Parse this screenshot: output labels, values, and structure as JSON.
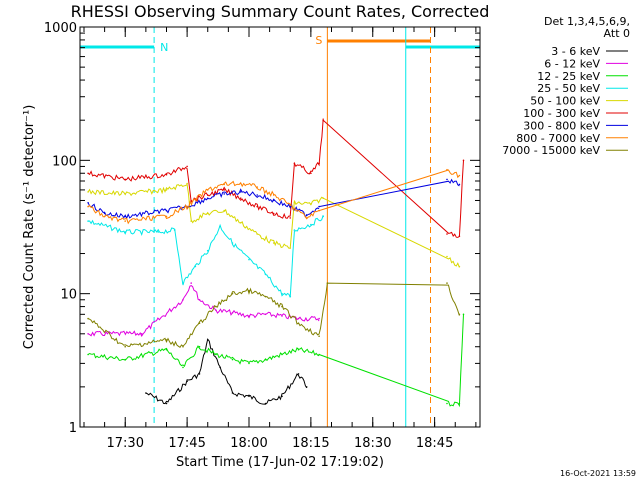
{
  "chart_data": {
    "type": "line",
    "title": "RHESSI Observing Summary Count Rates, Corrected",
    "xlabel": "Start Time (17-Jun-02 17:19:02)",
    "ylabel": "Corrected Count Rate (s⁻¹ detector⁻¹)",
    "yscale": "log",
    "ylim": [
      1,
      1000
    ],
    "xlim": [
      "17:19:02",
      "18:56:00"
    ],
    "x_ticks": [
      "17:30",
      "17:45",
      "18:00",
      "18:15",
      "18:30",
      "18:45"
    ],
    "y_ticks": [
      "1",
      "10",
      "100",
      "1000"
    ],
    "legend_position": "right",
    "legend_header": [
      "Det 1,3,4,5,6,9,",
      "Att 0"
    ],
    "series": [
      {
        "name": "3 - 6 keV",
        "color": "#000000",
        "points": [
          [
            "17:35",
            1.8
          ],
          [
            "17:40",
            1.5
          ],
          [
            "17:45",
            2.2
          ],
          [
            "17:48",
            2.5
          ],
          [
            "17:50",
            4.5
          ],
          [
            "17:53",
            2.8
          ],
          [
            "17:56",
            1.8
          ],
          [
            "18:00",
            1.7
          ],
          [
            "18:04",
            1.5
          ],
          [
            "18:08",
            1.7
          ],
          [
            "18:12",
            2.5
          ],
          [
            "18:14",
            2.0
          ]
        ]
      },
      {
        "name": "6 - 12 keV",
        "color": "#e000e0",
        "points": [
          [
            "17:21",
            5.0
          ],
          [
            "17:34",
            5.0
          ],
          [
            "17:44",
            9.0
          ],
          [
            "17:46",
            12.0
          ],
          [
            "17:48",
            9.0
          ],
          [
            "17:52",
            7.5
          ],
          [
            "17:56",
            7.2
          ],
          [
            "18:00",
            6.8
          ],
          [
            "18:04",
            7.0
          ],
          [
            "18:08",
            6.8
          ],
          [
            "18:12",
            6.5
          ],
          [
            "18:17",
            6.5
          ]
        ]
      },
      {
        "name": "12 - 25 keV",
        "color": "#00e000",
        "points": [
          [
            "17:21",
            3.5
          ],
          [
            "17:30",
            3.2
          ],
          [
            "17:40",
            3.8
          ],
          [
            "17:44",
            2.8
          ],
          [
            "17:48",
            4.0
          ],
          [
            "17:52",
            3.5
          ],
          [
            "17:56",
            3.2
          ],
          [
            "18:00",
            3.0
          ],
          [
            "18:04",
            3.2
          ],
          [
            "18:08",
            3.5
          ],
          [
            "18:12",
            3.8
          ],
          [
            "18:17",
            3.5
          ],
          [
            "18:48",
            1.5
          ],
          [
            "18:51",
            1.5
          ],
          [
            "18:52",
            7.0
          ]
        ]
      },
      {
        "name": "25 - 50 keV",
        "color": "#00e8e8",
        "points": [
          [
            "17:21",
            35.0
          ],
          [
            "17:30",
            29.0
          ],
          [
            "17:38",
            29.0
          ],
          [
            "17:42",
            30.0
          ],
          [
            "17:44",
            12.0
          ],
          [
            "17:47",
            16.0
          ],
          [
            "17:50",
            21.0
          ],
          [
            "17:53",
            32.0
          ],
          [
            "17:56",
            24.0
          ],
          [
            "18:00",
            18.0
          ],
          [
            "18:04",
            14.0
          ],
          [
            "18:08",
            10.0
          ],
          [
            "18:10",
            9.5
          ],
          [
            "18:11",
            30.0
          ],
          [
            "18:15",
            33.0
          ],
          [
            "18:18",
            38.0
          ]
        ]
      },
      {
        "name": "50 - 100 keV",
        "color": "#d8d800",
        "points": [
          [
            "17:21",
            58.0
          ],
          [
            "17:30",
            56.0
          ],
          [
            "17:40",
            60.0
          ],
          [
            "17:45",
            67.0
          ],
          [
            "17:46",
            35.0
          ],
          [
            "17:50",
            40.0
          ],
          [
            "17:54",
            42.0
          ],
          [
            "17:58",
            34.0
          ],
          [
            "18:02",
            28.0
          ],
          [
            "18:06",
            24.0
          ],
          [
            "18:10",
            22.0
          ],
          [
            "18:11",
            48.0
          ],
          [
            "18:15",
            47.0
          ],
          [
            "18:18",
            52.0
          ],
          [
            "18:48",
            19.0
          ],
          [
            "18:51",
            16.0
          ]
        ]
      },
      {
        "name": "100 - 300 keV",
        "color": "#e00000",
        "points": [
          [
            "17:21",
            80.0
          ],
          [
            "17:30",
            72.0
          ],
          [
            "17:40",
            78.0
          ],
          [
            "17:45",
            90.0
          ],
          [
            "17:46",
            50.0
          ],
          [
            "17:50",
            55.0
          ],
          [
            "17:54",
            60.0
          ],
          [
            "17:58",
            52.0
          ],
          [
            "18:02",
            45.0
          ],
          [
            "18:06",
            40.0
          ],
          [
            "18:10",
            37.0
          ],
          [
            "18:11",
            95.0
          ],
          [
            "18:15",
            80.0
          ],
          [
            "18:17",
            95.0
          ],
          [
            "18:18",
            200.0
          ],
          [
            "18:48",
            28.0
          ],
          [
            "18:51",
            27.0
          ],
          [
            "18:52",
            100.0
          ]
        ]
      },
      {
        "name": "300 - 800 keV",
        "color": "#0000e0",
        "points": [
          [
            "17:21",
            48.0
          ],
          [
            "17:25",
            40.0
          ],
          [
            "17:30",
            38.0
          ],
          [
            "17:40",
            42.0
          ],
          [
            "17:45",
            45.0
          ],
          [
            "17:50",
            52.0
          ],
          [
            "17:54",
            56.0
          ],
          [
            "17:58",
            58.0
          ],
          [
            "18:02",
            55.0
          ],
          [
            "18:06",
            50.0
          ],
          [
            "18:10",
            45.0
          ],
          [
            "18:14",
            39.0
          ],
          [
            "18:17",
            45.0
          ],
          [
            "18:48",
            72.0
          ],
          [
            "18:51",
            66.0
          ]
        ]
      },
      {
        "name": "800 - 7000 keV",
        "color": "#ff8000",
        "points": [
          [
            "17:21",
            45.0
          ],
          [
            "17:25",
            38.0
          ],
          [
            "17:30",
            35.0
          ],
          [
            "17:40",
            38.0
          ],
          [
            "17:45",
            45.0
          ],
          [
            "17:50",
            60.0
          ],
          [
            "17:54",
            66.0
          ],
          [
            "17:58",
            67.0
          ],
          [
            "18:02",
            63.0
          ],
          [
            "18:06",
            55.0
          ],
          [
            "18:10",
            46.0
          ],
          [
            "18:14",
            37.0
          ],
          [
            "18:17",
            42.0
          ],
          [
            "18:48",
            85.0
          ],
          [
            "18:51",
            77.0
          ]
        ]
      },
      {
        "name": "7000 - 15000 keV",
        "color": "#808000",
        "points": [
          [
            "17:21",
            6.5
          ],
          [
            "17:30",
            4.0
          ],
          [
            "17:40",
            4.5
          ],
          [
            "17:44",
            4.0
          ],
          [
            "17:48",
            6.0
          ],
          [
            "17:52",
            8.0
          ],
          [
            "17:56",
            10.0
          ],
          [
            "18:00",
            10.5
          ],
          [
            "18:04",
            9.5
          ],
          [
            "18:08",
            8.0
          ],
          [
            "18:12",
            6.0
          ],
          [
            "18:17",
            4.8
          ],
          [
            "18:19",
            12.0
          ],
          [
            "18:48",
            12.0
          ],
          [
            "18:51",
            7.0
          ]
        ]
      }
    ],
    "flags": [
      {
        "label": "N",
        "color": "#00e8e8",
        "start": "17:19:02",
        "end": "17:37:00"
      },
      {
        "label": "S",
        "color": "#ff8000",
        "start": "18:19:00",
        "end": "18:44:00"
      },
      {
        "label": "",
        "color": "#00e8e8",
        "start": "18:38:00",
        "end": "18:56:00"
      }
    ],
    "vertical_lines": [
      {
        "time": "17:19:02",
        "color": "#00e8e8",
        "style": "solid"
      },
      {
        "time": "17:37:00",
        "color": "#00e8e8",
        "style": "dashed"
      },
      {
        "time": "18:19:00",
        "color": "#ff8000",
        "style": "solid"
      },
      {
        "time": "18:38:00",
        "color": "#00e8e8",
        "style": "solid"
      },
      {
        "time": "18:44:00",
        "color": "#ff8000",
        "style": "dashed"
      },
      {
        "time": "18:56:00",
        "color": "#00e8e8",
        "style": "dashed"
      }
    ],
    "footer_stamp": "16-Oct-2021 13:59"
  }
}
